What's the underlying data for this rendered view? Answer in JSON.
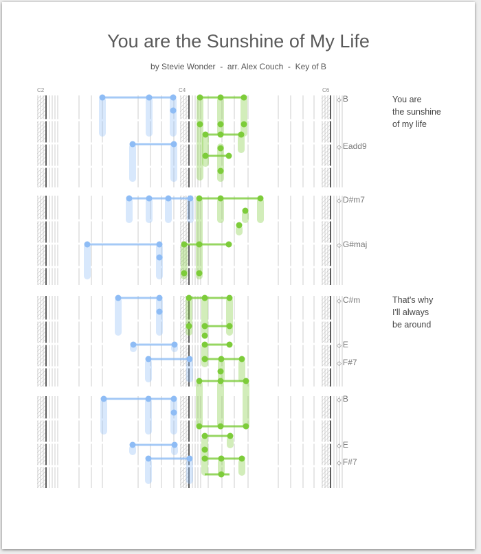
{
  "header": {
    "title": "You are the Sunshine of My Life",
    "subtitle": "by Stevie Wonder  -  arr. Alex Couch  -  Key of B"
  },
  "octave_markers": [
    "C2",
    "C4",
    "C6"
  ],
  "chords": [
    {
      "symbol": "B",
      "arrow": "◇"
    },
    {
      "symbol": "Eadd9",
      "arrow": "◇"
    },
    {
      "symbol": "D#m7",
      "arrow": "◇"
    },
    {
      "symbol": "G#maj",
      "arrow": "◇"
    },
    {
      "symbol": "C#m",
      "arrow": "◇"
    },
    {
      "symbol": "E",
      "arrow": "◇"
    },
    {
      "symbol": "F#7",
      "arrow": "◇"
    },
    {
      "symbol": "B",
      "arrow": "◇"
    },
    {
      "symbol": "E",
      "arrow": "◇"
    },
    {
      "symbol": "F#7",
      "arrow": "◇"
    }
  ],
  "lyrics": [
    {
      "lines": [
        "You are",
        "the sunshine",
        "of my life"
      ]
    },
    {
      "lines": [
        "That's why",
        "I'll always",
        "be around"
      ]
    }
  ],
  "colors": {
    "left_hand": "#8ebcf5",
    "right_hand": "#7dcc3a",
    "grid_line": "#cccccc",
    "c_line": "#333333"
  }
}
